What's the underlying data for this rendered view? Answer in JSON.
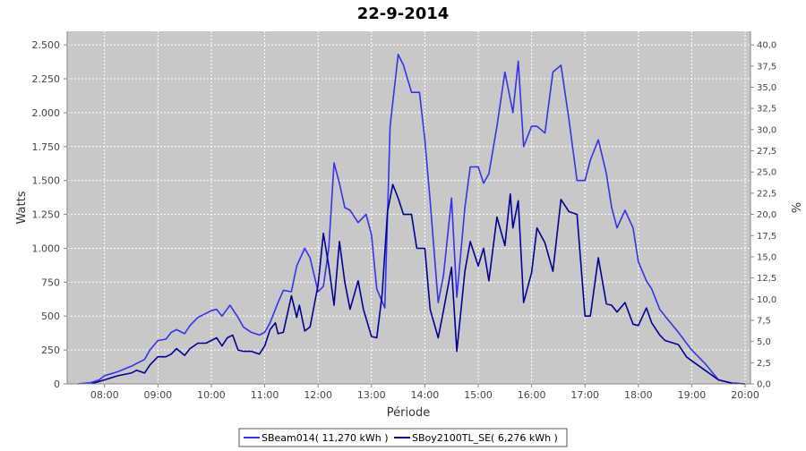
{
  "chart_data": {
    "type": "line",
    "title": "22-9-2014",
    "xlabel": "Période",
    "ylabel": "Watts",
    "y2label": "%",
    "xlim": [
      7.3,
      20.1
    ],
    "ylim": [
      0,
      2600
    ],
    "y2lim": [
      0,
      41.6
    ],
    "grid": true,
    "legend_position": "bottom",
    "x_tick_labels": [
      "08:00",
      "09:00",
      "10:00",
      "11:00",
      "12:00",
      "13:00",
      "14:00",
      "15:00",
      "16:00",
      "17:00",
      "18:00",
      "19:00",
      "20:00"
    ],
    "x_tick_values": [
      8,
      9,
      10,
      11,
      12,
      13,
      14,
      15,
      16,
      17,
      18,
      19,
      20
    ],
    "y_tick_labels": [
      "0",
      "250",
      "500",
      "750",
      "1.000",
      "1.250",
      "1.500",
      "1.750",
      "2.000",
      "2.250",
      "2.500"
    ],
    "y_tick_values": [
      0,
      250,
      500,
      750,
      1000,
      1250,
      1500,
      1750,
      2000,
      2250,
      2500
    ],
    "y2_tick_labels": [
      "0,0",
      "2,5",
      "5,0",
      "7,5",
      "10,0",
      "12,5",
      "15,0",
      "17,5",
      "20,0",
      "22,5",
      "25,0",
      "27,5",
      "30,0",
      "32,5",
      "35,0",
      "37,5",
      "40,0"
    ],
    "y2_tick_values": [
      0,
      2.5,
      5,
      7.5,
      10,
      12.5,
      15,
      17.5,
      20,
      22.5,
      25,
      27.5,
      30,
      32.5,
      35,
      37.5,
      40
    ],
    "series": [
      {
        "name": "SBeam014",
        "legend_label": "SBeam014( 11,270 kWh )",
        "color": "#3333ee",
        "x": [
          7.5,
          7.75,
          7.9,
          8.0,
          8.25,
          8.5,
          8.75,
          8.85,
          9.0,
          9.15,
          9.25,
          9.35,
          9.5,
          9.6,
          9.75,
          9.9,
          10.0,
          10.1,
          10.2,
          10.35,
          10.5,
          10.6,
          10.75,
          10.9,
          11.0,
          11.1,
          11.25,
          11.35,
          11.5,
          11.6,
          11.75,
          11.85,
          12.0,
          12.1,
          12.2,
          12.3,
          12.4,
          12.5,
          12.6,
          12.75,
          12.9,
          13.0,
          13.1,
          13.25,
          13.35,
          13.5,
          13.6,
          13.75,
          13.9,
          14.0,
          14.1,
          14.25,
          14.35,
          14.5,
          14.6,
          14.75,
          14.85,
          15.0,
          15.1,
          15.2,
          15.35,
          15.5,
          15.65,
          15.75,
          15.85,
          16.0,
          16.1,
          16.25,
          16.4,
          16.55,
          16.7,
          16.85,
          17.0,
          17.1,
          17.25,
          17.4,
          17.5,
          17.6,
          17.75,
          17.9,
          18.0,
          18.15,
          18.25,
          18.4,
          18.5,
          18.75,
          18.9,
          19.0,
          19.25,
          19.5,
          19.75,
          20.0
        ],
        "y": [
          0,
          10,
          30,
          60,
          90,
          130,
          180,
          250,
          320,
          330,
          380,
          400,
          370,
          430,
          490,
          520,
          540,
          550,
          500,
          580,
          490,
          420,
          380,
          360,
          380,
          450,
          600,
          690,
          680,
          870,
          1000,
          930,
          680,
          720,
          1000,
          1630,
          1480,
          1300,
          1280,
          1190,
          1250,
          1100,
          700,
          560,
          1900,
          2430,
          2350,
          2150,
          2150,
          1800,
          1350,
          600,
          800,
          1370,
          640,
          1300,
          1600,
          1600,
          1480,
          1550,
          1900,
          2300,
          2000,
          2380,
          1750,
          1900,
          1900,
          1850,
          2300,
          2350,
          1950,
          1500,
          1500,
          1650,
          1800,
          1550,
          1300,
          1150,
          1280,
          1150,
          900,
          760,
          700,
          550,
          500,
          380,
          300,
          250,
          150,
          30,
          5,
          0
        ]
      },
      {
        "name": "SBoy2100TL_SE",
        "legend_label": "SBoy2100TL_SE( 6,276 kWh )",
        "color": "#000099",
        "x": [
          7.75,
          8.0,
          8.25,
          8.5,
          8.6,
          8.75,
          8.85,
          9.0,
          9.15,
          9.25,
          9.35,
          9.5,
          9.6,
          9.75,
          9.9,
          10.0,
          10.1,
          10.2,
          10.3,
          10.4,
          10.5,
          10.6,
          10.75,
          10.9,
          11.0,
          11.1,
          11.2,
          11.25,
          11.35,
          11.5,
          11.6,
          11.65,
          11.75,
          11.85,
          12.0,
          12.1,
          12.2,
          12.3,
          12.4,
          12.5,
          12.6,
          12.75,
          12.85,
          13.0,
          13.1,
          13.2,
          13.3,
          13.4,
          13.5,
          13.6,
          13.75,
          13.85,
          14.0,
          14.1,
          14.25,
          14.35,
          14.5,
          14.6,
          14.75,
          14.85,
          15.0,
          15.1,
          15.2,
          15.35,
          15.5,
          15.6,
          15.65,
          15.75,
          15.85,
          16.0,
          16.1,
          16.25,
          16.4,
          16.55,
          16.7,
          16.85,
          17.0,
          17.1,
          17.25,
          17.4,
          17.5,
          17.6,
          17.75,
          17.9,
          18.0,
          18.15,
          18.25,
          18.4,
          18.5,
          18.75,
          18.9,
          19.0,
          19.25,
          19.5,
          19.75,
          20.0
        ],
        "y": [
          0,
          30,
          60,
          80,
          100,
          80,
          140,
          200,
          200,
          220,
          260,
          210,
          260,
          300,
          300,
          320,
          340,
          280,
          340,
          360,
          250,
          240,
          240,
          220,
          280,
          400,
          450,
          370,
          380,
          650,
          490,
          580,
          390,
          420,
          730,
          1110,
          870,
          580,
          1050,
          750,
          550,
          760,
          550,
          350,
          340,
          660,
          1270,
          1470,
          1370,
          1250,
          1250,
          1000,
          1000,
          550,
          340,
          540,
          860,
          240,
          830,
          1050,
          870,
          1000,
          760,
          1230,
          1020,
          1400,
          1150,
          1350,
          600,
          820,
          1150,
          1040,
          830,
          1360,
          1270,
          1250,
          500,
          500,
          930,
          590,
          580,
          530,
          600,
          440,
          430,
          560,
          450,
          360,
          320,
          290,
          200,
          170,
          100,
          30,
          5,
          0
        ]
      }
    ]
  }
}
